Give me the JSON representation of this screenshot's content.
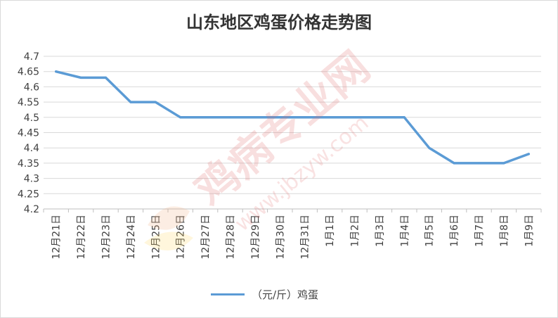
{
  "chart_data": {
    "type": "line",
    "title": "山东地区鸡蛋价格走势图",
    "categories": [
      "12月21日",
      "12月22日",
      "12月23日",
      "12月24日",
      "12月25日",
      "12月26日",
      "12月27日",
      "12月28日",
      "12月29日",
      "12月30日",
      "12月31日",
      "1月1日",
      "1月2日",
      "1月3日",
      "1月4日",
      "1月5日",
      "1月6日",
      "1月7日",
      "1月8日",
      "1月9日"
    ],
    "series": [
      {
        "name": "（元/斤）鸡蛋",
        "color": "#5b9bd5",
        "values": [
          4.65,
          4.63,
          4.63,
          4.55,
          4.55,
          4.5,
          4.5,
          4.5,
          4.5,
          4.5,
          4.5,
          4.5,
          4.5,
          4.5,
          4.5,
          4.4,
          4.35,
          4.35,
          4.35,
          4.38
        ]
      }
    ],
    "ylim": [
      4.2,
      4.7
    ],
    "yticks": [
      "4.2",
      "4.25",
      "4.3",
      "4.35",
      "4.4",
      "4.45",
      "4.5",
      "4.55",
      "4.6",
      "4.65",
      "4.7"
    ],
    "grid": true,
    "legend": "bottom"
  },
  "watermark": {
    "brand": "鸡病专业网",
    "url": "www.jbzyw.com"
  }
}
